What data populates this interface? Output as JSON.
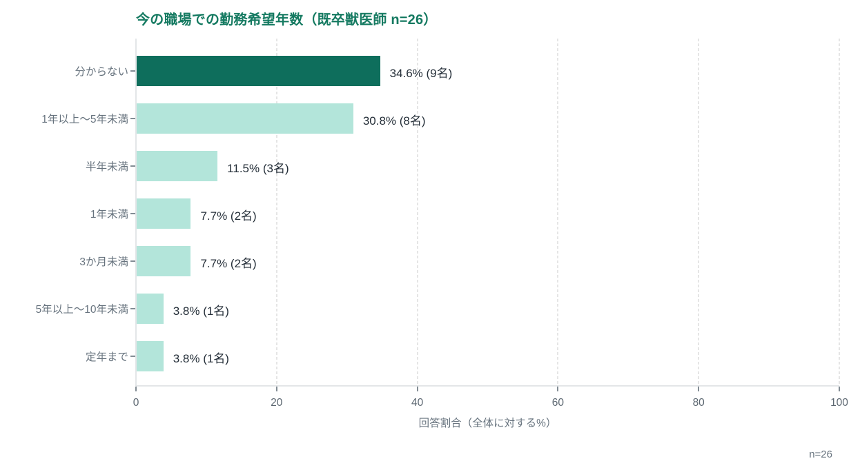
{
  "chart_data": {
    "type": "bar",
    "orientation": "horizontal",
    "title": "今の職場での勤務希望年数（既卒獣医師 n=26）",
    "categories": [
      "分からない",
      "1年以上〜5年未満",
      "半年未満",
      "1年未満",
      "3か月未満",
      "5年以上〜10年未満",
      "定年まで"
    ],
    "values": [
      34.6,
      30.8,
      11.5,
      7.7,
      7.7,
      3.8,
      3.8
    ],
    "counts": [
      9,
      8,
      3,
      2,
      2,
      1,
      1
    ],
    "bar_labels": [
      "34.6% (9名)",
      "30.8% (8名)",
      "11.5% (3名)",
      "7.7% (2名)",
      "7.7% (2名)",
      "3.8% (1名)",
      "3.8% (1名)"
    ],
    "xlabel": "回答割合（全体に対する%）",
    "xlim": [
      0,
      100
    ],
    "xticks": [
      0,
      20,
      40,
      60,
      80,
      100
    ],
    "grid": "vertical-dashed",
    "legend": "none",
    "highlight_index": 0,
    "colors": {
      "bar_default": "#b3e5da",
      "bar_highlight": "#0e6e5c",
      "title": "#157a61",
      "category_label": "#67737e",
      "tick_label": "#5b6670",
      "value_label": "#242e38",
      "gridline": "#e5e5e5",
      "axis_line": "#e3e6e8",
      "tick_mark": "#828c94"
    }
  },
  "footnote": "n=26"
}
